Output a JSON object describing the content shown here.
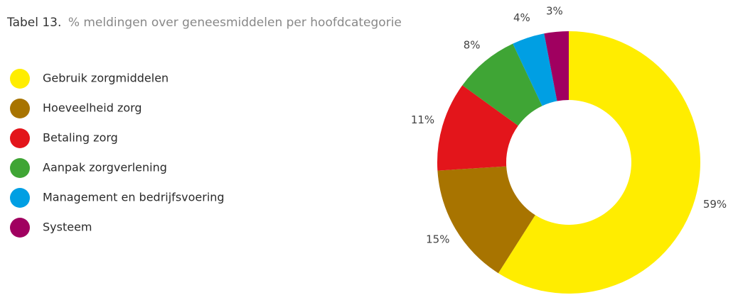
{
  "chart_data": {
    "type": "donut",
    "title_label": "Tabel 13.",
    "title": "% meldingen over geneesmiddelen per hoofdcategorie",
    "categories": [
      "Gebruik zorgmiddelen",
      "Hoeveelheid zorg",
      "Betaling zorg",
      "Aanpak zorgverlening",
      "Management en bedrijfsvoering",
      "Systeem"
    ],
    "values": [
      59,
      15,
      11,
      8,
      4,
      3
    ],
    "value_labels": [
      "59%",
      "15%",
      "11%",
      "8%",
      "4%",
      "3%"
    ],
    "colors": [
      "#ffed00",
      "#a87400",
      "#e3151b",
      "#3fa535",
      "#009fe3",
      "#a00060"
    ],
    "legend": "left"
  }
}
